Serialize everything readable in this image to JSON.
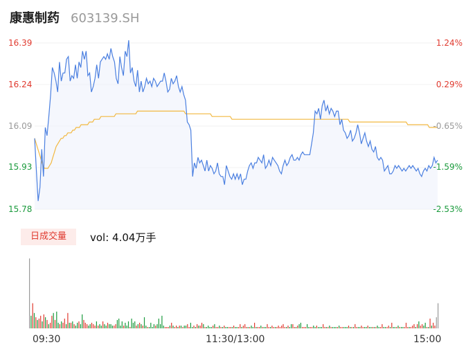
{
  "header": {
    "name": "康惠制药",
    "code": "603139.SH"
  },
  "price_axis": {
    "left_labels": [
      "16.39",
      "16.24",
      "16.09",
      "15.93",
      "15.78"
    ],
    "right_labels": [
      "1.24%",
      "0.29%",
      "-0.65%",
      "-1.59%",
      "-2.53%"
    ],
    "colors": [
      "#e03a2f",
      "#e03a2f",
      "#999999",
      "#1a9a3c",
      "#1a9a3c"
    ]
  },
  "volume_panel": {
    "tag_label": "日成交量",
    "vol_text": "vol: 4.04万手"
  },
  "time_axis": {
    "labels": [
      "09:30",
      "11:30/13:00",
      "15:00"
    ]
  },
  "colors": {
    "price_line": "#4a7fe0",
    "avg_line": "#f2b840",
    "up": "#e03a2f",
    "down": "#1a9a3c",
    "flat": "#999999"
  },
  "chart_data": [
    {
      "type": "line",
      "title": "",
      "xlabel": "",
      "ylabel": "",
      "ylim": [
        15.78,
        16.39
      ],
      "x_ticks": [
        "09:30",
        "11:30/13:00",
        "15:00"
      ],
      "series": [
        {
          "values": [
            16.04,
            15.92,
            15.81,
            15.86,
            16.0,
            15.9,
            16.08,
            16.05,
            16.12,
            16.2,
            16.3,
            16.28,
            16.25,
            16.21,
            16.32,
            16.25,
            16.28,
            16.28,
            16.33,
            16.34,
            16.25,
            16.27,
            16.26,
            16.31,
            16.26,
            16.32,
            16.3,
            16.36,
            16.33,
            16.36,
            16.27,
            16.28,
            16.21,
            16.23,
            16.26,
            16.31,
            16.26,
            16.32,
            16.33,
            16.34,
            16.33,
            16.35,
            16.33,
            16.37,
            16.34,
            16.32,
            16.26,
            16.24,
            16.34,
            16.3,
            16.27,
            16.36,
            16.34,
            16.4,
            16.28,
            16.3,
            16.25,
            16.23,
            16.29,
            16.21,
            16.25,
            16.21,
            16.23,
            16.26,
            16.24,
            16.25,
            16.23,
            16.26,
            16.25,
            16.23,
            16.24,
            16.25,
            16.25,
            16.28,
            16.25,
            16.21,
            16.22,
            16.26,
            16.24,
            16.25,
            16.27,
            16.23,
            16.21,
            16.23,
            16.2,
            16.18,
            16.1,
            16.09,
            16.07,
            15.9,
            15.95,
            15.93,
            15.97,
            15.95,
            15.96,
            15.94,
            15.92,
            15.96,
            15.92,
            15.94,
            15.93,
            15.91,
            15.92,
            15.95,
            15.91,
            15.9,
            15.9,
            15.87,
            15.94,
            15.92,
            15.9,
            15.89,
            15.91,
            15.89,
            15.91,
            15.89,
            15.91,
            15.87,
            15.89,
            15.89,
            15.92,
            15.94,
            15.95,
            15.93,
            15.95,
            15.95,
            15.97,
            15.96,
            15.95,
            15.98,
            15.93,
            15.94,
            15.96,
            15.94,
            15.97,
            15.96,
            15.95,
            15.94,
            15.92,
            15.91,
            15.94,
            15.96,
            15.94,
            15.95,
            15.97,
            15.98,
            15.96,
            15.96,
            15.97,
            15.96,
            15.98,
            15.99,
            15.98,
            15.98,
            15.98,
            15.98,
            16.02,
            16.06,
            16.14,
            16.13,
            16.15,
            16.11,
            16.16,
            16.18,
            16.14,
            16.16,
            16.13,
            16.15,
            16.14,
            16.12,
            16.14,
            16.14,
            16.09,
            16.11,
            16.07,
            16.06,
            16.04,
            16.05,
            16.07,
            16.03,
            16.04,
            16.06,
            16.09,
            16.06,
            16.02,
            16.04,
            16.06,
            16.03,
            16.01,
            16.03,
            16.0,
            15.99,
            16.01,
            15.97,
            15.96,
            15.97,
            15.96,
            15.92,
            15.93,
            15.94,
            15.91,
            15.91,
            15.92,
            15.94,
            15.93,
            15.94,
            15.93,
            15.92,
            15.93,
            15.92,
            15.93,
            15.94,
            15.93,
            15.94,
            15.93,
            15.92,
            15.93,
            15.91,
            15.9,
            15.92,
            15.93,
            15.92,
            15.94,
            15.93,
            15.94,
            15.97,
            15.95,
            15.96
          ]
        },
        {
          "values": [
            16.04,
            16.02,
            16.0,
            15.98,
            15.96,
            15.94,
            15.93,
            15.93,
            15.93,
            15.94,
            15.95,
            15.97,
            15.99,
            16.01,
            16.02,
            16.03,
            16.04,
            16.04,
            16.05,
            16.05,
            16.06,
            16.06,
            16.06,
            16.07,
            16.07,
            16.08,
            16.08,
            16.08,
            16.09,
            16.09,
            16.09,
            16.09,
            16.09,
            16.1,
            16.1,
            16.1,
            16.11,
            16.11,
            16.11,
            16.11,
            16.12,
            16.12,
            16.12,
            16.12,
            16.12,
            16.12,
            16.12,
            16.12,
            16.12,
            16.13,
            16.13,
            16.13,
            16.13,
            16.13,
            16.13,
            16.13,
            16.13,
            16.13,
            16.13,
            16.13,
            16.13,
            16.13,
            16.14,
            16.14,
            16.14,
            16.14,
            16.14,
            16.14,
            16.14,
            16.14,
            16.14,
            16.14,
            16.14,
            16.14,
            16.14,
            16.14,
            16.14,
            16.14,
            16.14,
            16.14,
            16.14,
            16.14,
            16.14,
            16.14,
            16.14,
            16.14,
            16.14,
            16.14,
            16.14,
            16.14,
            16.14,
            16.13,
            16.13,
            16.13,
            16.13,
            16.13,
            16.13,
            16.13,
            16.13,
            16.13,
            16.13,
            16.13,
            16.13,
            16.13,
            16.13,
            16.13,
            16.13,
            16.12,
            16.12,
            16.12,
            16.12,
            16.12,
            16.12,
            16.12,
            16.12,
            16.12,
            16.12,
            16.12,
            16.12,
            16.11,
            16.11,
            16.11,
            16.11,
            16.11,
            16.11,
            16.11,
            16.11,
            16.11,
            16.11,
            16.11,
            16.11,
            16.11,
            16.11,
            16.11,
            16.11,
            16.11,
            16.11,
            16.11,
            16.11,
            16.11,
            16.11,
            16.11,
            16.11,
            16.11,
            16.11,
            16.11,
            16.11,
            16.11,
            16.11,
            16.11,
            16.11,
            16.11,
            16.11,
            16.11,
            16.11,
            16.11,
            16.11,
            16.11,
            16.11,
            16.11,
            16.11,
            16.11,
            16.11,
            16.11,
            16.11,
            16.11,
            16.11,
            16.11,
            16.11,
            16.11,
            16.11,
            16.11,
            16.11,
            16.11,
            16.11,
            16.11,
            16.11,
            16.11,
            16.11,
            16.11,
            16.11,
            16.11,
            16.11,
            16.11,
            16.11,
            16.11,
            16.11,
            16.11,
            16.11,
            16.11,
            16.1,
            16.1,
            16.1,
            16.1,
            16.1,
            16.1,
            16.1,
            16.1,
            16.1,
            16.1,
            16.1,
            16.1,
            16.1,
            16.1,
            16.1,
            16.1,
            16.1,
            16.1,
            16.1,
            16.1,
            16.1,
            16.1,
            16.1,
            16.1,
            16.1,
            16.1,
            16.1,
            16.1,
            16.1,
            16.1,
            16.1,
            16.1,
            16.1,
            16.1,
            16.1,
            16.09,
            16.09,
            16.09,
            16.09,
            16.09,
            16.09,
            16.09,
            16.09,
            16.09,
            16.09,
            16.09,
            16.09,
            16.09,
            16.08,
            16.08,
            16.08,
            16.08,
            16.08,
            16.08
          ]
        }
      ]
    },
    {
      "type": "bar",
      "title": "",
      "ylim": [
        0,
        108
      ],
      "values": [
        100,
        18,
        36,
        22,
        16,
        12,
        14,
        18,
        10,
        20,
        16,
        12,
        6,
        8,
        18,
        22,
        12,
        24,
        8,
        6,
        10,
        8,
        14,
        6,
        22,
        8,
        8,
        10,
        6,
        4,
        8,
        10,
        6,
        20,
        12,
        8,
        6,
        4,
        6,
        8,
        6,
        4,
        10,
        4,
        6,
        4,
        10,
        6,
        4,
        8,
        6,
        6,
        4,
        4,
        6,
        12,
        14,
        4,
        10,
        4,
        8,
        4,
        10,
        2,
        14,
        8,
        10,
        4,
        6,
        8,
        6,
        4,
        16,
        4,
        2,
        2,
        8,
        2,
        6,
        4,
        6,
        14,
        6,
        18,
        4,
        2,
        2,
        2,
        4,
        8,
        4,
        2,
        4,
        2,
        4,
        4,
        2,
        4,
        4,
        6,
        2,
        8,
        2,
        4,
        2,
        6,
        4,
        4,
        8,
        6,
        2,
        2,
        4,
        2,
        2,
        4,
        6,
        2,
        2,
        4,
        2,
        2,
        4,
        2,
        2,
        2,
        2,
        2,
        4,
        2,
        2,
        2,
        6,
        2,
        4,
        6,
        2,
        2,
        2,
        4,
        2,
        8,
        2,
        2,
        2,
        4,
        2,
        2,
        2,
        6,
        2,
        2,
        4,
        2,
        2,
        2,
        4,
        2,
        4,
        6,
        2,
        2,
        4,
        2,
        6,
        6,
        2,
        2,
        4,
        6,
        8,
        2,
        2,
        2,
        6,
        2,
        2,
        2,
        4,
        2,
        4,
        2,
        2,
        2,
        6,
        2,
        2,
        2,
        4,
        2,
        2,
        2,
        2,
        2,
        4,
        2,
        2,
        2,
        2,
        2,
        4,
        2,
        2,
        2,
        6,
        2,
        2,
        2,
        4,
        2,
        2,
        2,
        4,
        2,
        2,
        2,
        2,
        2,
        4,
        2,
        2,
        6,
        2,
        2,
        2,
        4,
        2,
        8,
        2,
        2,
        2,
        4,
        2,
        2,
        2,
        2,
        8,
        2,
        2,
        2,
        4,
        6,
        2,
        6,
        10,
        4,
        6,
        4,
        8,
        2,
        2,
        14,
        4,
        8,
        4,
        16,
        36
      ],
      "directions": [
        0,
        -1,
        1,
        -1,
        1,
        -1,
        1,
        1,
        -1,
        1,
        -1,
        1,
        -1,
        1,
        1,
        -1,
        1,
        -1,
        -1,
        1,
        -1,
        1,
        1,
        -1,
        1,
        -1,
        1,
        -1,
        1,
        -1,
        -1,
        1,
        -1,
        -1,
        1,
        1,
        1,
        -1,
        -1,
        1,
        1,
        1,
        -1,
        1,
        -1,
        -1,
        1,
        -1,
        -1,
        1,
        -1,
        -1,
        -1,
        1,
        1,
        -1,
        -1,
        -1,
        -1,
        1,
        -1,
        -1,
        -1,
        1,
        -1,
        -1,
        -1,
        1,
        -1,
        1,
        -1,
        1,
        -1,
        -1,
        1,
        -1,
        -1,
        -1,
        -1,
        1,
        -1,
        -1,
        -1,
        -1,
        -1,
        1,
        1,
        1,
        -1,
        1,
        -1,
        1,
        1,
        -1,
        1,
        -1,
        1,
        -1,
        -1,
        1,
        1,
        -1,
        -1,
        1,
        -1,
        1,
        -1,
        1,
        1,
        -1,
        1,
        -1,
        -1,
        -1,
        -1,
        1,
        -1,
        1,
        1,
        -1,
        1,
        -1,
        1,
        -1,
        -1,
        1,
        1,
        -1,
        1,
        -1,
        -1,
        1,
        1,
        -1,
        1,
        1,
        1,
        -1,
        1,
        -1,
        -1,
        1,
        -1,
        1,
        1,
        -1,
        1,
        -1,
        -1,
        1,
        1,
        -1,
        1,
        1,
        -1,
        1,
        1,
        1,
        1,
        1,
        1,
        -1,
        1,
        -1,
        -1,
        1,
        1,
        -1,
        1,
        -1,
        -1,
        1,
        1,
        1,
        -1,
        -1,
        1,
        1,
        -1,
        -1,
        1,
        -1,
        -1,
        -1,
        1,
        1,
        -1,
        1,
        -1,
        1,
        -1,
        -1,
        -1,
        1,
        -1,
        1,
        1,
        -1,
        -1,
        -1,
        1,
        -1,
        1,
        -1,
        1,
        1,
        -1,
        -1,
        1,
        1,
        -1,
        -1,
        1,
        -1,
        -1,
        1,
        -1,
        1,
        -1,
        -1,
        1,
        1,
        -1,
        -1,
        1,
        1,
        -1,
        1,
        -1,
        -1,
        1,
        -1,
        1,
        -1,
        -1,
        1,
        1,
        1,
        -1,
        1,
        1,
        1,
        -1,
        1,
        -1,
        1,
        1,
        -1,
        -1,
        1,
        -1,
        1,
        -1,
        1,
        1,
        0
      ]
    }
  ]
}
